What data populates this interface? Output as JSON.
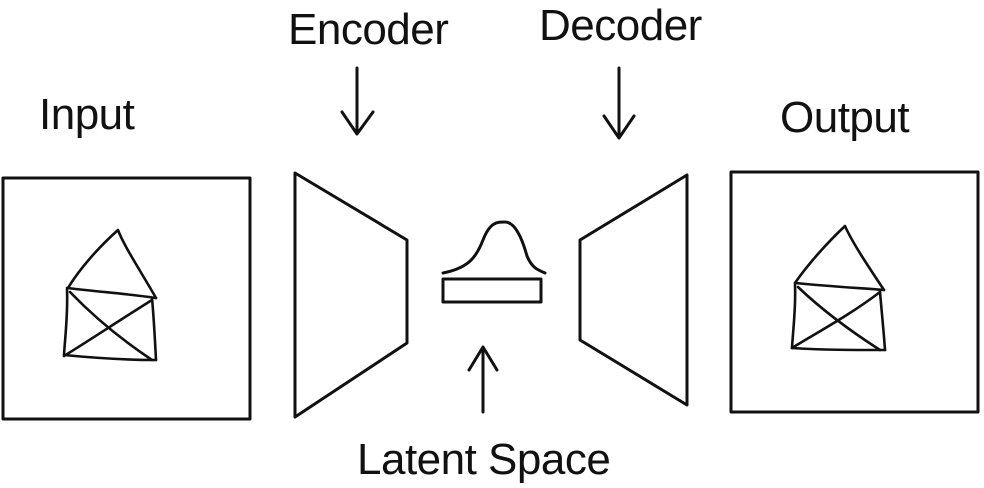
{
  "labels": {
    "input": "Input",
    "encoder": "Encoder",
    "decoder": "Decoder",
    "output": "Output",
    "latent": "Latent Space"
  },
  "icons": {
    "input_image": "house-sketch-icon",
    "output_image": "house-sketch-icon",
    "latent_distribution": "bell-curve-icon"
  }
}
